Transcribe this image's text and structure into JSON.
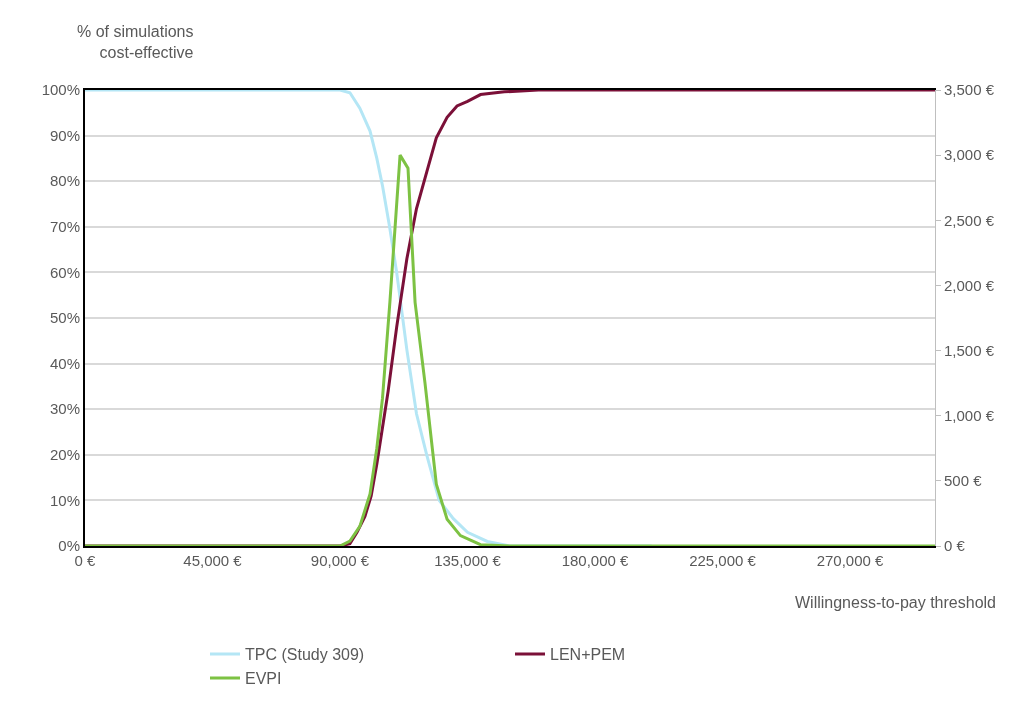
{
  "chart_data": {
    "type": "line",
    "xlabel": "Willingness-to-pay threshold",
    "ylabel": "% of simulations cost-effective",
    "xlim": [
      0,
      300000
    ],
    "xticks": [
      {
        "value": 0,
        "label": "0 €"
      },
      {
        "value": 45000,
        "label": "45,000 €"
      },
      {
        "value": 90000,
        "label": "90,000 €"
      },
      {
        "value": 135000,
        "label": "135,000 €"
      },
      {
        "value": 180000,
        "label": "180,000 €"
      },
      {
        "value": 225000,
        "label": "225,000 €"
      },
      {
        "value": 270000,
        "label": "270,000 €"
      }
    ],
    "ylim": [
      0,
      100
    ],
    "yticks": [
      {
        "value": 0,
        "label": "0%"
      },
      {
        "value": 10,
        "label": "10%"
      },
      {
        "value": 20,
        "label": "20%"
      },
      {
        "value": 30,
        "label": "30%"
      },
      {
        "value": 40,
        "label": "40%"
      },
      {
        "value": 50,
        "label": "50%"
      },
      {
        "value": 60,
        "label": "60%"
      },
      {
        "value": 70,
        "label": "70%"
      },
      {
        "value": 80,
        "label": "80%"
      },
      {
        "value": 90,
        "label": "90%"
      },
      {
        "value": 100,
        "label": "100%"
      }
    ],
    "y2lim": [
      0,
      3500
    ],
    "y2ticks": [
      {
        "value": 0,
        "label": "0 €"
      },
      {
        "value": 500,
        "label": "500 €"
      },
      {
        "value": 1000,
        "label": "1,000 €"
      },
      {
        "value": 1500,
        "label": "1,500 €"
      },
      {
        "value": 2000,
        "label": "2,000 €"
      },
      {
        "value": 2500,
        "label": "2,500 €"
      },
      {
        "value": 3000,
        "label": "3,000 €"
      },
      {
        "value": 3500,
        "label": "3,500 €"
      }
    ],
    "grid": "y",
    "legend": "bottom",
    "marker": "none",
    "line_style": "solid",
    "series": [
      {
        "name": "TPC (Study 309)",
        "color": "#b4e6f5",
        "x": [
          0,
          45000,
          90000,
          93500,
          97000,
          100600,
          103000,
          105000,
          107500,
          110000,
          113600,
          117000,
          120600,
          125000,
          130000,
          135000,
          142000,
          150000,
          200000
        ],
        "values": [
          100,
          100,
          100,
          99.4,
          96,
          91,
          85,
          79,
          70,
          60,
          43,
          29,
          20,
          10,
          6,
          3,
          1,
          0,
          0
        ]
      },
      {
        "name": "LEN+PEM",
        "color": "#7b1038",
        "x": [
          0,
          45000,
          90000,
          93500,
          96000,
          98800,
          101000,
          103000,
          107000,
          110000,
          113600,
          117000,
          120600,
          124000,
          127800,
          131300,
          135000,
          139600,
          148000,
          160000,
          200000,
          250000,
          300000
        ],
        "values": [
          0,
          0,
          0,
          0.5,
          3,
          6.5,
          11,
          18,
          34,
          48,
          63,
          74,
          82,
          89.5,
          94,
          96.5,
          97.5,
          99,
          99.6,
          100,
          100,
          100,
          100
        ]
      },
      {
        "name": "EVPI",
        "color": "#7dc243",
        "axis": "y2",
        "x": [
          0,
          45000,
          90000,
          93500,
          97000,
          100600,
          103000,
          105000,
          107600,
          111200,
          114000,
          116500,
          120000,
          124000,
          127800,
          132500,
          139600,
          150000,
          200000,
          250000,
          300000
        ],
        "values": [
          0,
          0,
          0,
          37,
          150,
          400,
          750,
          1135,
          1870,
          3000,
          2900,
          1870,
          1250,
          475,
          205,
          80,
          10,
          0,
          0,
          0,
          0
        ]
      }
    ]
  }
}
